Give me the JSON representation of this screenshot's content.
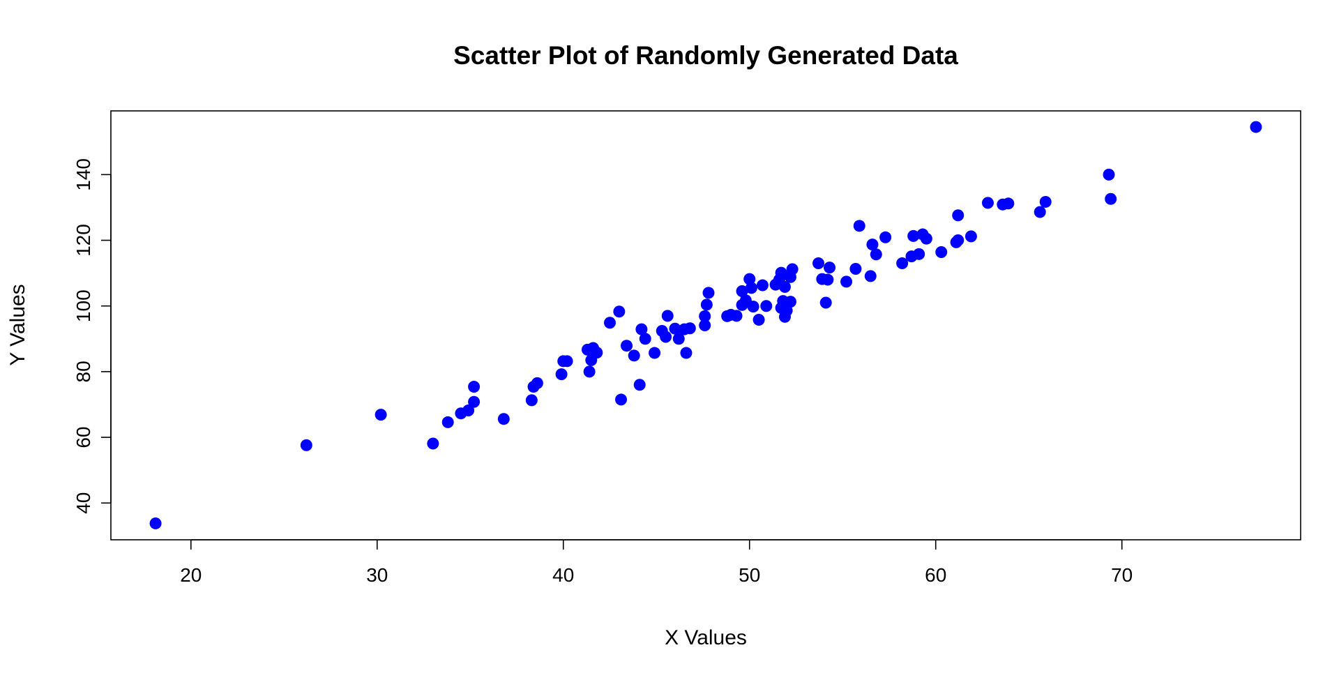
{
  "chart_data": {
    "type": "scatter",
    "title": "Scatter Plot of Randomly Generated Data",
    "xlabel": "X Values",
    "ylabel": "Y Values",
    "xlim": [
      15.7,
      79.6
    ],
    "ylim": [
      28.8,
      159.4
    ],
    "xticks": [
      20,
      30,
      40,
      50,
      60,
      70
    ],
    "yticks": [
      40,
      60,
      80,
      100,
      120,
      140
    ],
    "grid": false,
    "legend": "none",
    "marker_color": "#0000ff",
    "points": [
      [
        18.1,
        33.8
      ],
      [
        26.2,
        57.6
      ],
      [
        30.2,
        66.9
      ],
      [
        33.0,
        58.1
      ],
      [
        33.8,
        64.6
      ],
      [
        34.5,
        67.3
      ],
      [
        34.9,
        68.2
      ],
      [
        35.2,
        70.8
      ],
      [
        35.2,
        75.4
      ],
      [
        36.8,
        65.6
      ],
      [
        38.3,
        71.3
      ],
      [
        38.4,
        75.4
      ],
      [
        38.6,
        76.5
      ],
      [
        39.9,
        79.2
      ],
      [
        40.0,
        83.2
      ],
      [
        40.2,
        83.2
      ],
      [
        41.3,
        86.7
      ],
      [
        41.4,
        80.0
      ],
      [
        41.5,
        83.5
      ],
      [
        41.6,
        87.2
      ],
      [
        41.8,
        85.8
      ],
      [
        42.5,
        94.9
      ],
      [
        43.0,
        98.3
      ],
      [
        43.1,
        71.5
      ],
      [
        43.4,
        87.9
      ],
      [
        43.8,
        84.9
      ],
      [
        44.1,
        76.0
      ],
      [
        44.2,
        92.9
      ],
      [
        44.4,
        90.0
      ],
      [
        44.9,
        85.7
      ],
      [
        45.3,
        92.4
      ],
      [
        45.5,
        90.6
      ],
      [
        45.6,
        97.0
      ],
      [
        46.0,
        93.1
      ],
      [
        46.2,
        90.0
      ],
      [
        46.5,
        92.9
      ],
      [
        46.6,
        85.7
      ],
      [
        46.8,
        93.2
      ],
      [
        47.6,
        94.1
      ],
      [
        47.6,
        96.9
      ],
      [
        47.7,
        100.4
      ],
      [
        47.8,
        104.0
      ],
      [
        48.8,
        96.9
      ],
      [
        49.0,
        97.3
      ],
      [
        49.3,
        97.0
      ],
      [
        49.6,
        100.3
      ],
      [
        49.6,
        104.5
      ],
      [
        49.8,
        101.7
      ],
      [
        50.0,
        108.2
      ],
      [
        50.1,
        105.5
      ],
      [
        50.2,
        99.8
      ],
      [
        50.5,
        95.8
      ],
      [
        50.7,
        106.3
      ],
      [
        50.9,
        100.0
      ],
      [
        51.4,
        106.5
      ],
      [
        51.6,
        108.0
      ],
      [
        51.7,
        110.1
      ],
      [
        51.7,
        99.4
      ],
      [
        51.8,
        101.5
      ],
      [
        51.9,
        105.8
      ],
      [
        51.9,
        96.7
      ],
      [
        52.0,
        98.6
      ],
      [
        52.2,
        101.3
      ],
      [
        52.2,
        108.8
      ],
      [
        52.3,
        111.2
      ],
      [
        53.7,
        113.0
      ],
      [
        53.9,
        108.2
      ],
      [
        54.1,
        101.0
      ],
      [
        54.2,
        108.0
      ],
      [
        54.3,
        111.7
      ],
      [
        55.2,
        107.4
      ],
      [
        55.7,
        111.3
      ],
      [
        55.9,
        124.4
      ],
      [
        56.5,
        109.1
      ],
      [
        56.6,
        118.7
      ],
      [
        56.8,
        115.7
      ],
      [
        57.3,
        120.9
      ],
      [
        58.2,
        113.0
      ],
      [
        58.7,
        115.1
      ],
      [
        58.8,
        121.3
      ],
      [
        59.1,
        115.8
      ],
      [
        59.3,
        121.8
      ],
      [
        59.5,
        120.5
      ],
      [
        60.3,
        116.4
      ],
      [
        61.1,
        119.4
      ],
      [
        61.2,
        120.0
      ],
      [
        61.2,
        127.6
      ],
      [
        61.9,
        121.2
      ],
      [
        62.8,
        131.4
      ],
      [
        63.6,
        130.9
      ],
      [
        63.9,
        131.2
      ],
      [
        65.6,
        128.6
      ],
      [
        65.9,
        131.7
      ],
      [
        69.3,
        140.0
      ],
      [
        69.4,
        132.6
      ],
      [
        77.2,
        154.5
      ]
    ]
  }
}
